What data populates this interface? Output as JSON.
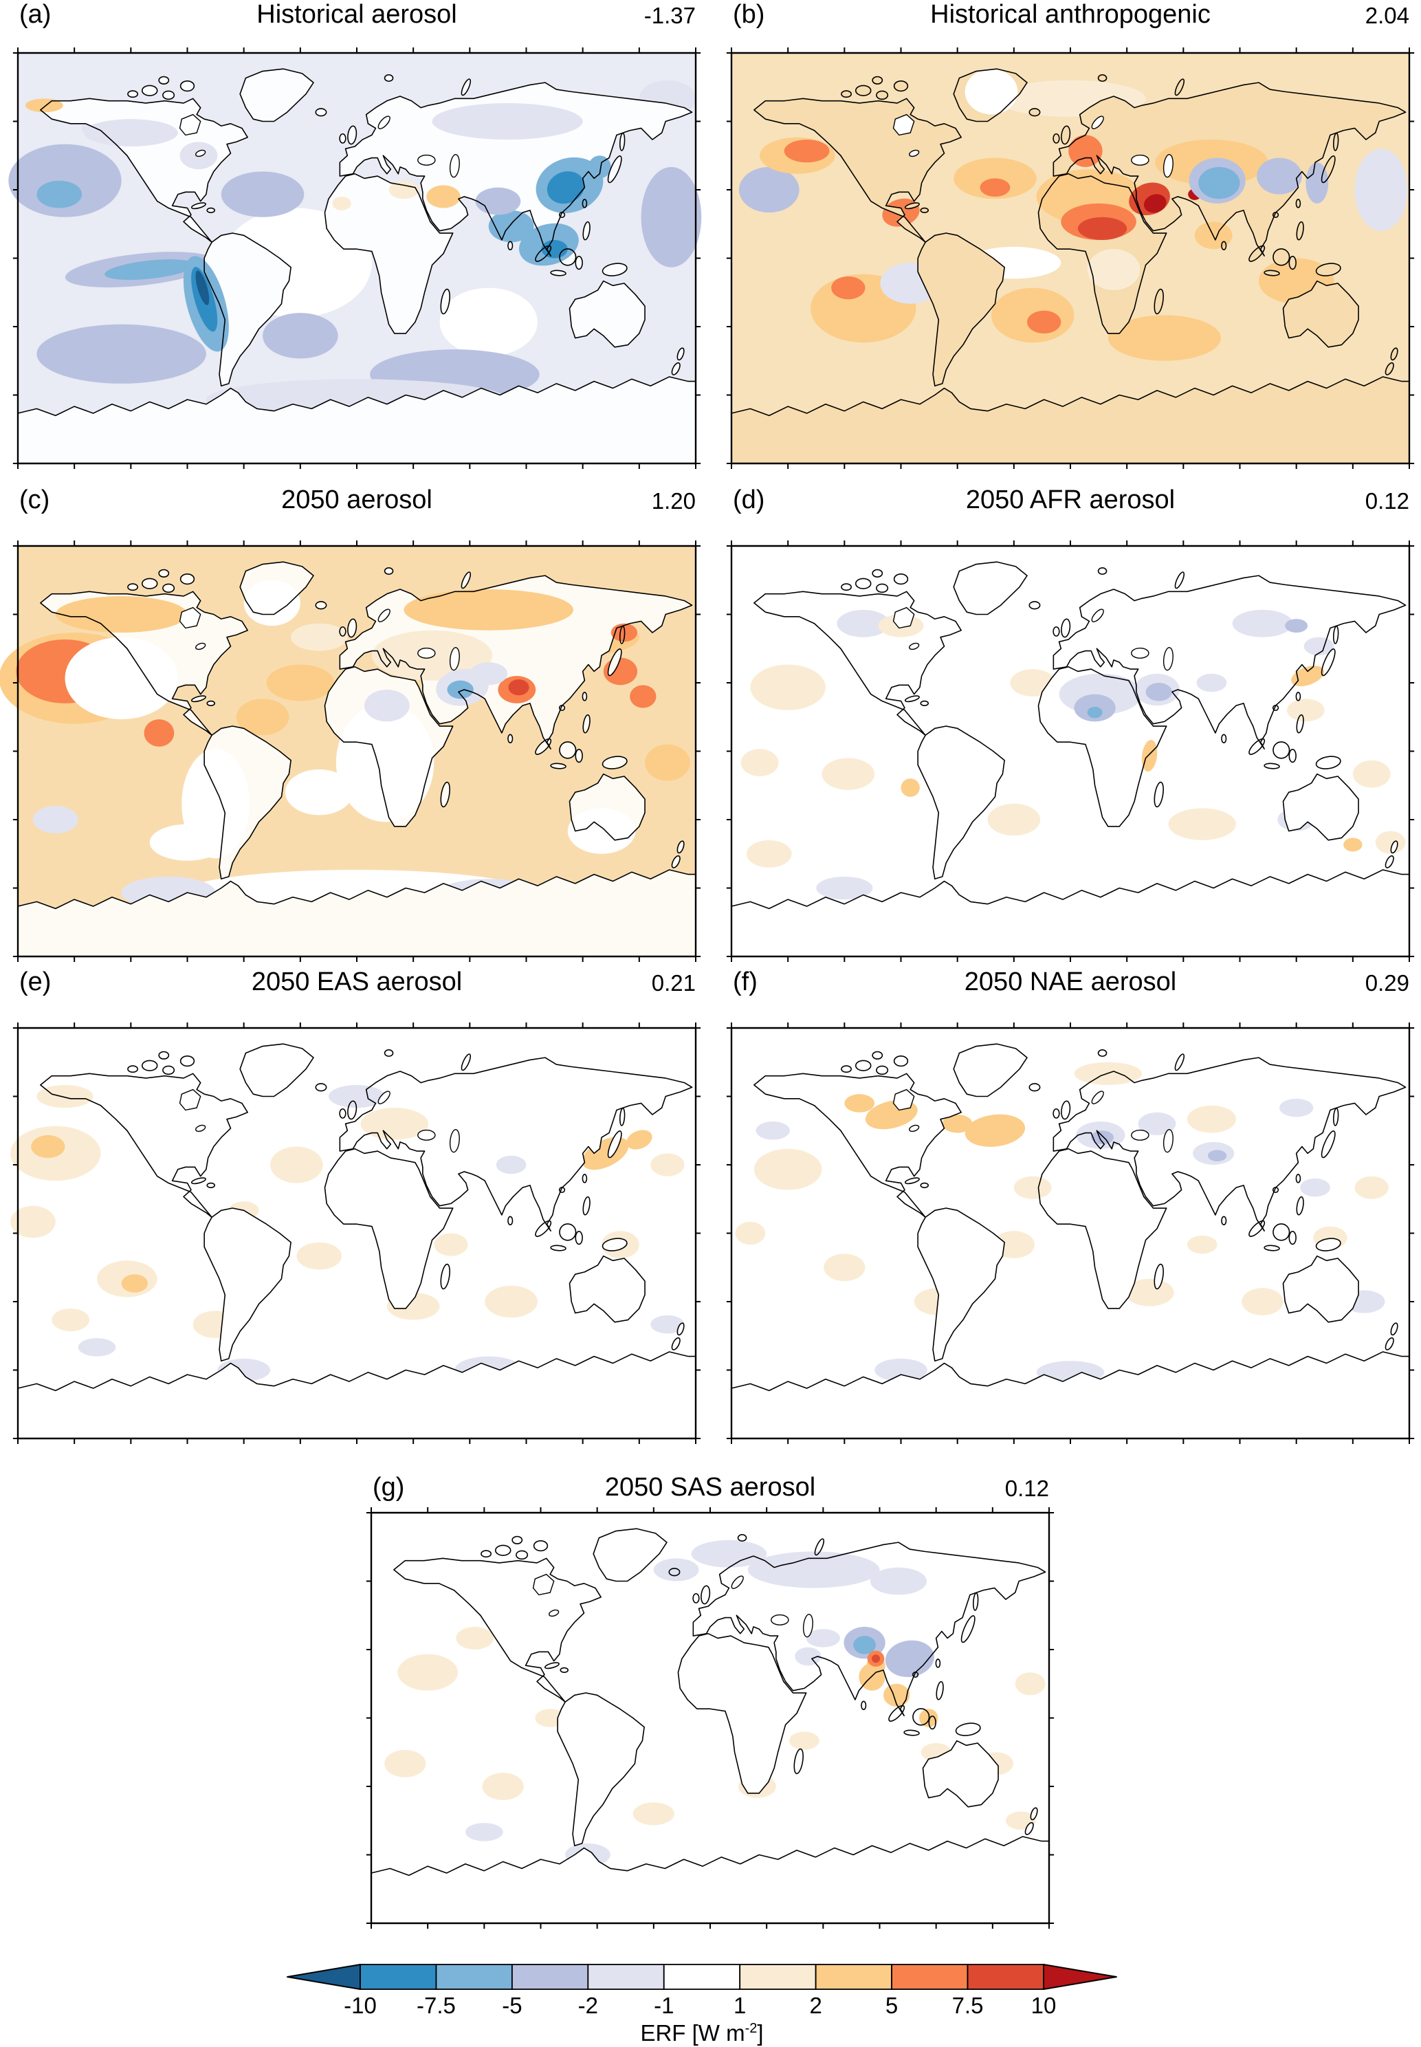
{
  "panels": [
    {
      "label": "(a)",
      "title": "Historical aerosol",
      "value": "-1.37"
    },
    {
      "label": "(b)",
      "title": "Historical anthropogenic",
      "value": "2.04"
    },
    {
      "label": "(c)",
      "title": "2050 aerosol",
      "value": "1.20"
    },
    {
      "label": "(d)",
      "title": "2050 AFR aerosol",
      "value": "0.12"
    },
    {
      "label": "(e)",
      "title": "2050 EAS aerosol",
      "value": "0.21"
    },
    {
      "label": "(f)",
      "title": "2050 NAE aerosol",
      "value": "0.29"
    },
    {
      "label": "(g)",
      "title": "2050 SAS aerosol",
      "value": "0.12"
    }
  ],
  "colorbar": {
    "ticks": [
      "-10",
      "-7.5",
      "-5",
      "-2",
      "-1",
      "1",
      "2",
      "5",
      "7.5",
      "10"
    ],
    "label_pre": "ERF [W m",
    "label_sup": "-2",
    "label_post": "]",
    "segment_colors": [
      "#2f8dc3",
      "#7cb3d9",
      "#b9c1e0",
      "#e1e3f1",
      "#ffffff",
      "#faecd4",
      "#fbcd88",
      "#f8814e",
      "#de4a31"
    ],
    "arrow_left_color": "#195c8d",
    "arrow_right_color": "#b51418",
    "outline_color": "#000000"
  },
  "chart_data": {
    "type": "heatmap",
    "title": "Effective radiative forcing (ERF) global maps",
    "panels": [
      {
        "id": "a",
        "title": "Historical aerosol",
        "global_mean_wm2": -1.37
      },
      {
        "id": "b",
        "title": "Historical anthropogenic",
        "global_mean_wm2": 2.04
      },
      {
        "id": "c",
        "title": "2050 aerosol",
        "global_mean_wm2": 1.2
      },
      {
        "id": "d",
        "title": "2050 AFR aerosol",
        "global_mean_wm2": 0.12
      },
      {
        "id": "e",
        "title": "2050 EAS aerosol",
        "global_mean_wm2": 0.21
      },
      {
        "id": "f",
        "title": "2050 NAE aerosol",
        "global_mean_wm2": 0.29
      },
      {
        "id": "g",
        "title": "2050 SAS aerosol",
        "global_mean_wm2": 0.12
      }
    ],
    "colorbar": {
      "label": "ERF [W m⁻²]",
      "units": "W m-2",
      "levels": [
        -10,
        -7.5,
        -5,
        -2,
        -1,
        1,
        2,
        5,
        7.5,
        10
      ],
      "colors": [
        "#195c8d",
        "#2f8dc3",
        "#7cb3d9",
        "#b9c1e0",
        "#e1e3f1",
        "#ffffff",
        "#faecd4",
        "#fbcd88",
        "#f8814e",
        "#de4a31",
        "#b51418"
      ],
      "legend_position": "bottom",
      "open_ended_arrows": true
    },
    "projection": "global latitude-longitude maps, 90S-90N, 180W-180E",
    "grid": false
  }
}
